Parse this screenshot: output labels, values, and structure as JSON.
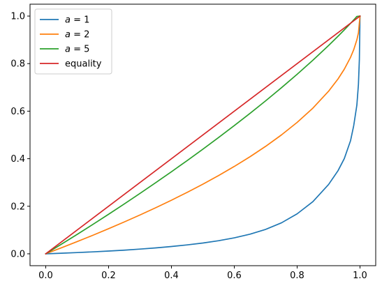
{
  "chart_data": {
    "type": "line",
    "title": "",
    "xlabel": "",
    "ylabel": "",
    "xlim": [
      -0.05,
      1.05
    ],
    "ylim": [
      -0.05,
      1.05
    ],
    "x_ticks": [
      "0.0",
      "0.2",
      "0.4",
      "0.6",
      "0.8",
      "1.0"
    ],
    "y_ticks": [
      "0.0",
      "0.2",
      "0.4",
      "0.6",
      "0.8",
      "1.0"
    ],
    "x_tick_values": [
      0.0,
      0.2,
      0.4,
      0.6,
      0.8,
      1.0
    ],
    "y_tick_values": [
      0.0,
      0.2,
      0.4,
      0.6,
      0.8,
      1.0
    ],
    "grid": false,
    "legend_position": "top-left",
    "series": [
      {
        "name": "a = 1",
        "name_var": "a",
        "name_rest": " = 1",
        "color": "#1f77b4",
        "x": [
          0,
          0.05,
          0.1,
          0.15,
          0.2,
          0.25,
          0.3,
          0.35,
          0.4,
          0.45,
          0.5,
          0.55,
          0.6,
          0.65,
          0.7,
          0.75,
          0.8,
          0.85,
          0.9,
          0.93,
          0.95,
          0.97,
          0.98,
          0.99,
          0.995,
          0.998,
          1.0
        ],
        "y": [
          0,
          0.0025,
          0.0052,
          0.0081,
          0.0115,
          0.0153,
          0.0198,
          0.0249,
          0.0307,
          0.0374,
          0.0454,
          0.0551,
          0.0672,
          0.0826,
          0.1029,
          0.1302,
          0.1682,
          0.2194,
          0.2915,
          0.3495,
          0.4004,
          0.4762,
          0.5392,
          0.6253,
          0.7122,
          0.8185,
          1.0
        ]
      },
      {
        "name": "a = 2",
        "name_var": "a",
        "name_rest": " = 2",
        "color": "#ff7f0e",
        "x": [
          0,
          0.05,
          0.1,
          0.15,
          0.2,
          0.25,
          0.3,
          0.35,
          0.4,
          0.45,
          0.5,
          0.55,
          0.6,
          0.65,
          0.7,
          0.75,
          0.8,
          0.85,
          0.9,
          0.93,
          0.95,
          0.97,
          0.98,
          0.99,
          0.995,
          1.0
        ],
        "y": [
          0,
          0.0253,
          0.0513,
          0.078,
          0.1056,
          0.134,
          0.1633,
          0.1938,
          0.2254,
          0.2584,
          0.2929,
          0.3292,
          0.3675,
          0.4084,
          0.4523,
          0.5,
          0.5528,
          0.6127,
          0.6838,
          0.7354,
          0.7764,
          0.8268,
          0.8586,
          0.9,
          0.9293,
          1.0
        ]
      },
      {
        "name": "a = 5",
        "name_var": "a",
        "name_rest": " = 5",
        "color": "#2ca02c",
        "x": [
          0,
          0.05,
          0.1,
          0.15,
          0.2,
          0.25,
          0.3,
          0.35,
          0.4,
          0.45,
          0.5,
          0.55,
          0.6,
          0.65,
          0.7,
          0.75,
          0.8,
          0.85,
          0.9,
          0.93,
          0.95,
          0.97,
          0.98,
          0.99,
          1.0
        ],
        "y": [
          0,
          0.0405,
          0.0817,
          0.1237,
          0.1664,
          0.2099,
          0.2542,
          0.2993,
          0.3452,
          0.3921,
          0.4401,
          0.4891,
          0.5393,
          0.5908,
          0.6438,
          0.6985,
          0.7551,
          0.8141,
          0.8761,
          0.9151,
          0.9418,
          0.9695,
          0.9837,
          0.9983,
          1.0
        ]
      },
      {
        "name": "equality",
        "color": "#d62728",
        "x": [
          0,
          1
        ],
        "y": [
          0,
          1
        ]
      }
    ]
  }
}
